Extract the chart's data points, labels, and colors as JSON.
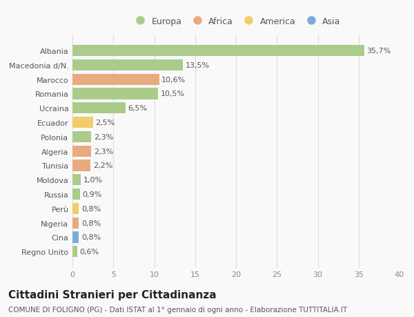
{
  "countries": [
    "Albania",
    "Macedonia d/N.",
    "Marocco",
    "Romania",
    "Ucraina",
    "Ecuador",
    "Polonia",
    "Algeria",
    "Tunisia",
    "Moldova",
    "Russia",
    "Perù",
    "Nigeria",
    "Cina",
    "Regno Unito"
  ],
  "values": [
    35.7,
    13.5,
    10.6,
    10.5,
    6.5,
    2.5,
    2.3,
    2.3,
    2.2,
    1.0,
    0.9,
    0.8,
    0.8,
    0.8,
    0.6
  ],
  "labels": [
    "35,7%",
    "13,5%",
    "10,6%",
    "10,5%",
    "6,5%",
    "2,5%",
    "2,3%",
    "2,3%",
    "2,2%",
    "1,0%",
    "0,9%",
    "0,8%",
    "0,8%",
    "0,8%",
    "0,6%"
  ],
  "continents": [
    "Europa",
    "Europa",
    "Africa",
    "Europa",
    "Europa",
    "America",
    "Europa",
    "Africa",
    "Africa",
    "Europa",
    "Europa",
    "America",
    "Africa",
    "Asia",
    "Europa"
  ],
  "colors": {
    "Europa": "#aacb8a",
    "Africa": "#e8aa7e",
    "America": "#f0cc6a",
    "Asia": "#7aabdb"
  },
  "xlim": [
    0,
    40
  ],
  "xticks": [
    0,
    5,
    10,
    15,
    20,
    25,
    30,
    35,
    40
  ],
  "title": "Cittadini Stranieri per Cittadinanza",
  "subtitle": "COMUNE DI FOLIGNO (PG) - Dati ISTAT al 1° gennaio di ogni anno - Elaborazione TUTTITALIA.IT",
  "background_color": "#f9f9f9",
  "grid_color": "#dddddd",
  "bar_height": 0.78,
  "label_fontsize": 8,
  "tick_fontsize": 8,
  "title_fontsize": 11,
  "subtitle_fontsize": 7.5,
  "legend_order": [
    "Europa",
    "Africa",
    "America",
    "Asia"
  ]
}
